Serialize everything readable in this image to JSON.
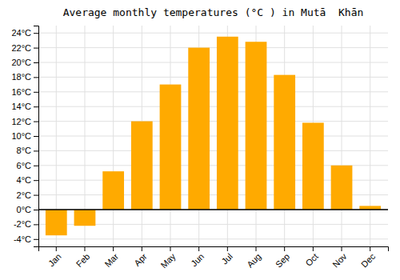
{
  "chart_data": {
    "type": "bar",
    "title": "Average monthly temperatures (°C ) in Mutā  Khān",
    "categories": [
      "Jan",
      "Feb",
      "Mar",
      "Apr",
      "May",
      "Jun",
      "Jul",
      "Aug",
      "Sep",
      "Oct",
      "Nov",
      "Dec"
    ],
    "values": [
      -3.5,
      -2.2,
      5.2,
      12.0,
      17.0,
      22.0,
      23.5,
      22.8,
      18.3,
      11.8,
      6.0,
      0.5
    ],
    "color": "#FFAA00",
    "ylim": [
      -5,
      25
    ],
    "yticks": [
      {
        "value": -4,
        "label": "-4°C"
      },
      {
        "value": -2,
        "label": "-2°C"
      },
      {
        "value": 0,
        "label": "0°C"
      },
      {
        "value": 2,
        "label": "2°C"
      },
      {
        "value": 4,
        "label": "4°C"
      },
      {
        "value": 6,
        "label": "6°C"
      },
      {
        "value": 8,
        "label": "8°C"
      },
      {
        "value": 10,
        "label": "10°C"
      },
      {
        "value": 12,
        "label": "12°C"
      },
      {
        "value": 14,
        "label": "14°C"
      },
      {
        "value": 16,
        "label": "16°C"
      },
      {
        "value": 18,
        "label": "18°C"
      },
      {
        "value": 20,
        "label": "20°C"
      },
      {
        "value": 22,
        "label": "22°C"
      },
      {
        "value": 24,
        "label": "24°C"
      }
    ],
    "grid": true
  }
}
